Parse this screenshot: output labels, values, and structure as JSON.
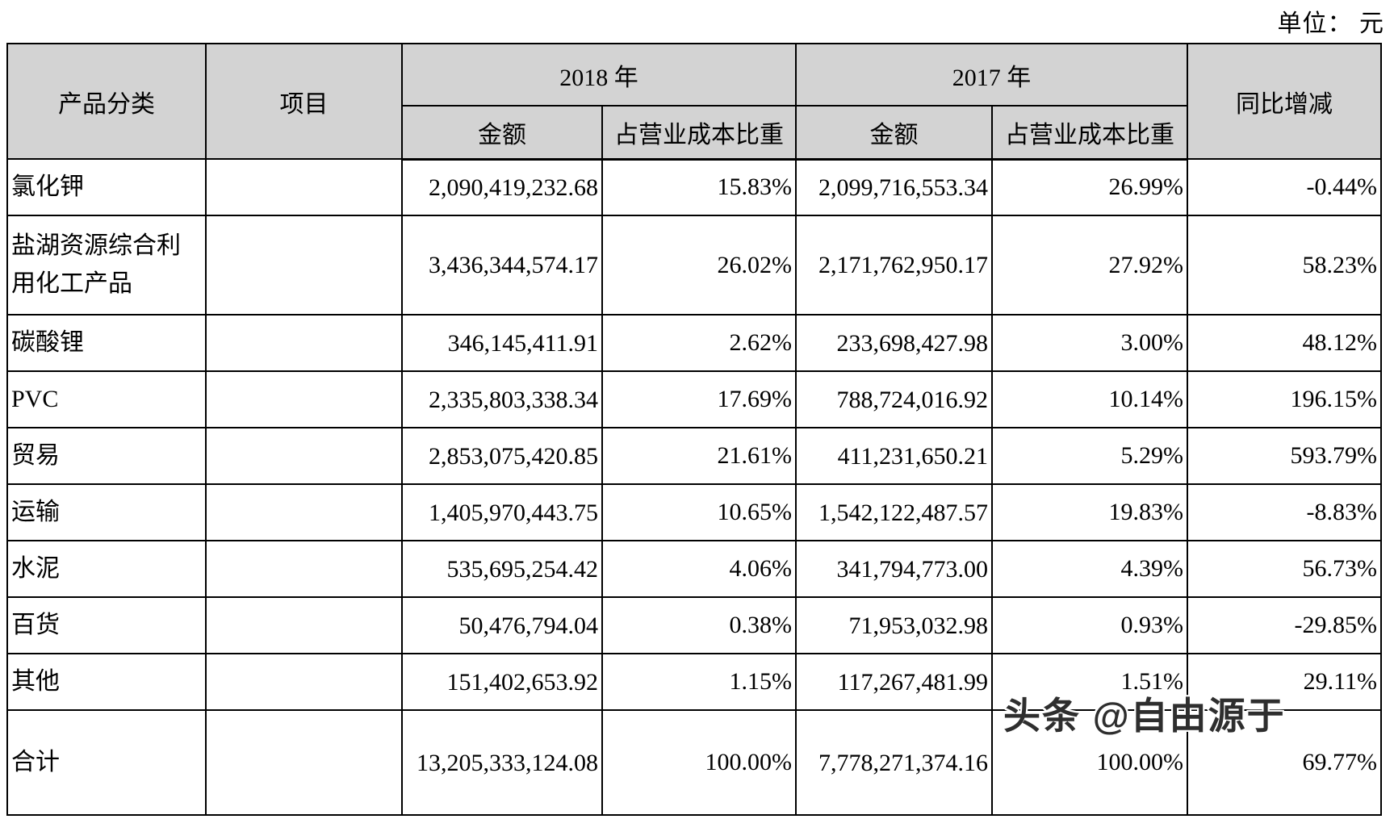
{
  "unit_label": "单位： 元",
  "watermark": "头条 @自由源于",
  "colors": {
    "header_bg": "#d3d3d3",
    "border": "#000000",
    "text": "#000000",
    "page_bg": "#ffffff"
  },
  "table": {
    "headers": {
      "product_category": "产品分类",
      "item": "项目",
      "year_2018": "2018 年",
      "year_2017": "2017 年",
      "amount": "金额",
      "cost_ratio": "占营业成本比重",
      "yoy_change": "同比增减"
    },
    "rows": [
      {
        "category": "氯化钾",
        "item": "",
        "amount_2018": "2,090,419,232.68",
        "ratio_2018": "15.83%",
        "amount_2017": "2,099,716,553.34",
        "ratio_2017": "26.99%",
        "yoy": "-0.44%"
      },
      {
        "category": "盐湖资源综合利用化工产品",
        "item": "",
        "amount_2018": "3,436,344,574.17",
        "ratio_2018": "26.02%",
        "amount_2017": "2,171,762,950.17",
        "ratio_2017": "27.92%",
        "yoy": "58.23%"
      },
      {
        "category": "碳酸锂",
        "item": "",
        "amount_2018": "346,145,411.91",
        "ratio_2018": "2.62%",
        "amount_2017": "233,698,427.98",
        "ratio_2017": "3.00%",
        "yoy": "48.12%"
      },
      {
        "category": "PVC",
        "item": "",
        "amount_2018": "2,335,803,338.34",
        "ratio_2018": "17.69%",
        "amount_2017": "788,724,016.92",
        "ratio_2017": "10.14%",
        "yoy": "196.15%"
      },
      {
        "category": "贸易",
        "item": "",
        "amount_2018": "2,853,075,420.85",
        "ratio_2018": "21.61%",
        "amount_2017": "411,231,650.21",
        "ratio_2017": "5.29%",
        "yoy": "593.79%"
      },
      {
        "category": "运输",
        "item": "",
        "amount_2018": "1,405,970,443.75",
        "ratio_2018": "10.65%",
        "amount_2017": "1,542,122,487.57",
        "ratio_2017": "19.83%",
        "yoy": "-8.83%"
      },
      {
        "category": "水泥",
        "item": "",
        "amount_2018": "535,695,254.42",
        "ratio_2018": "4.06%",
        "amount_2017": "341,794,773.00",
        "ratio_2017": "4.39%",
        "yoy": "56.73%"
      },
      {
        "category": "百货",
        "item": "",
        "amount_2018": "50,476,794.04",
        "ratio_2018": "0.38%",
        "amount_2017": "71,953,032.98",
        "ratio_2017": "0.93%",
        "yoy": "-29.85%"
      },
      {
        "category": "其他",
        "item": "",
        "amount_2018": "151,402,653.92",
        "ratio_2018": "1.15%",
        "amount_2017": "117,267,481.99",
        "ratio_2017": "1.51%",
        "yoy": "29.11%"
      },
      {
        "category": "合计",
        "item": "",
        "amount_2018": "13,205,333,124.08",
        "ratio_2018": "100.00%",
        "amount_2017": "7,778,271,374.16",
        "ratio_2017": "100.00%",
        "yoy": "69.77%"
      }
    ]
  }
}
